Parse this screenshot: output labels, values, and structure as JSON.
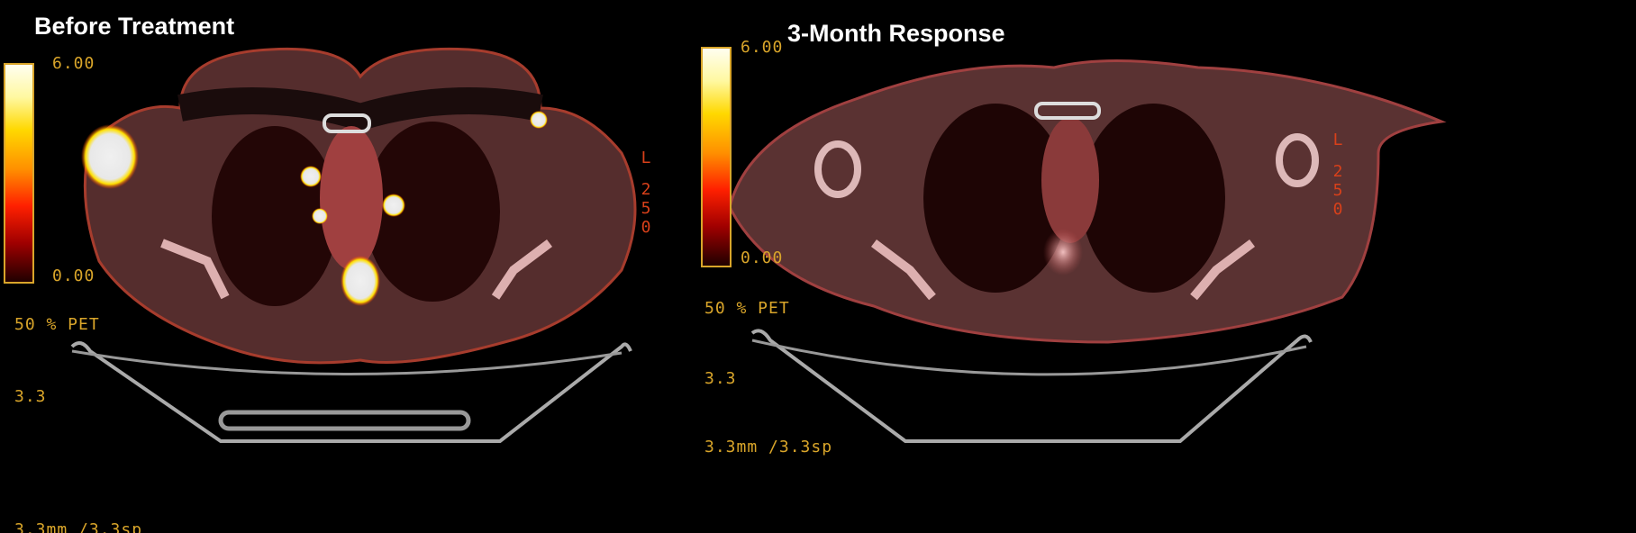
{
  "panels": [
    {
      "title": "Before Treatment",
      "scale_max": "6.00",
      "scale_min": "0.00",
      "blend": "50 % PET",
      "thickness": "3.3",
      "spacing": "3.3mm /3.3sp",
      "orientation": [
        "L",
        "2",
        "5",
        "0"
      ]
    },
    {
      "title": "3-Month Response",
      "scale_max": "6.00",
      "scale_min": "0.00",
      "blend": "50 % PET",
      "thickness": "3.3",
      "spacing": "3.3mm /3.3sp",
      "orientation": [
        "L",
        "2",
        "5",
        "0"
      ]
    }
  ],
  "colors": {
    "overlay_text": "#d9a52a",
    "orientation_text": "#d8401a",
    "hot_spot": "#ffffff"
  }
}
